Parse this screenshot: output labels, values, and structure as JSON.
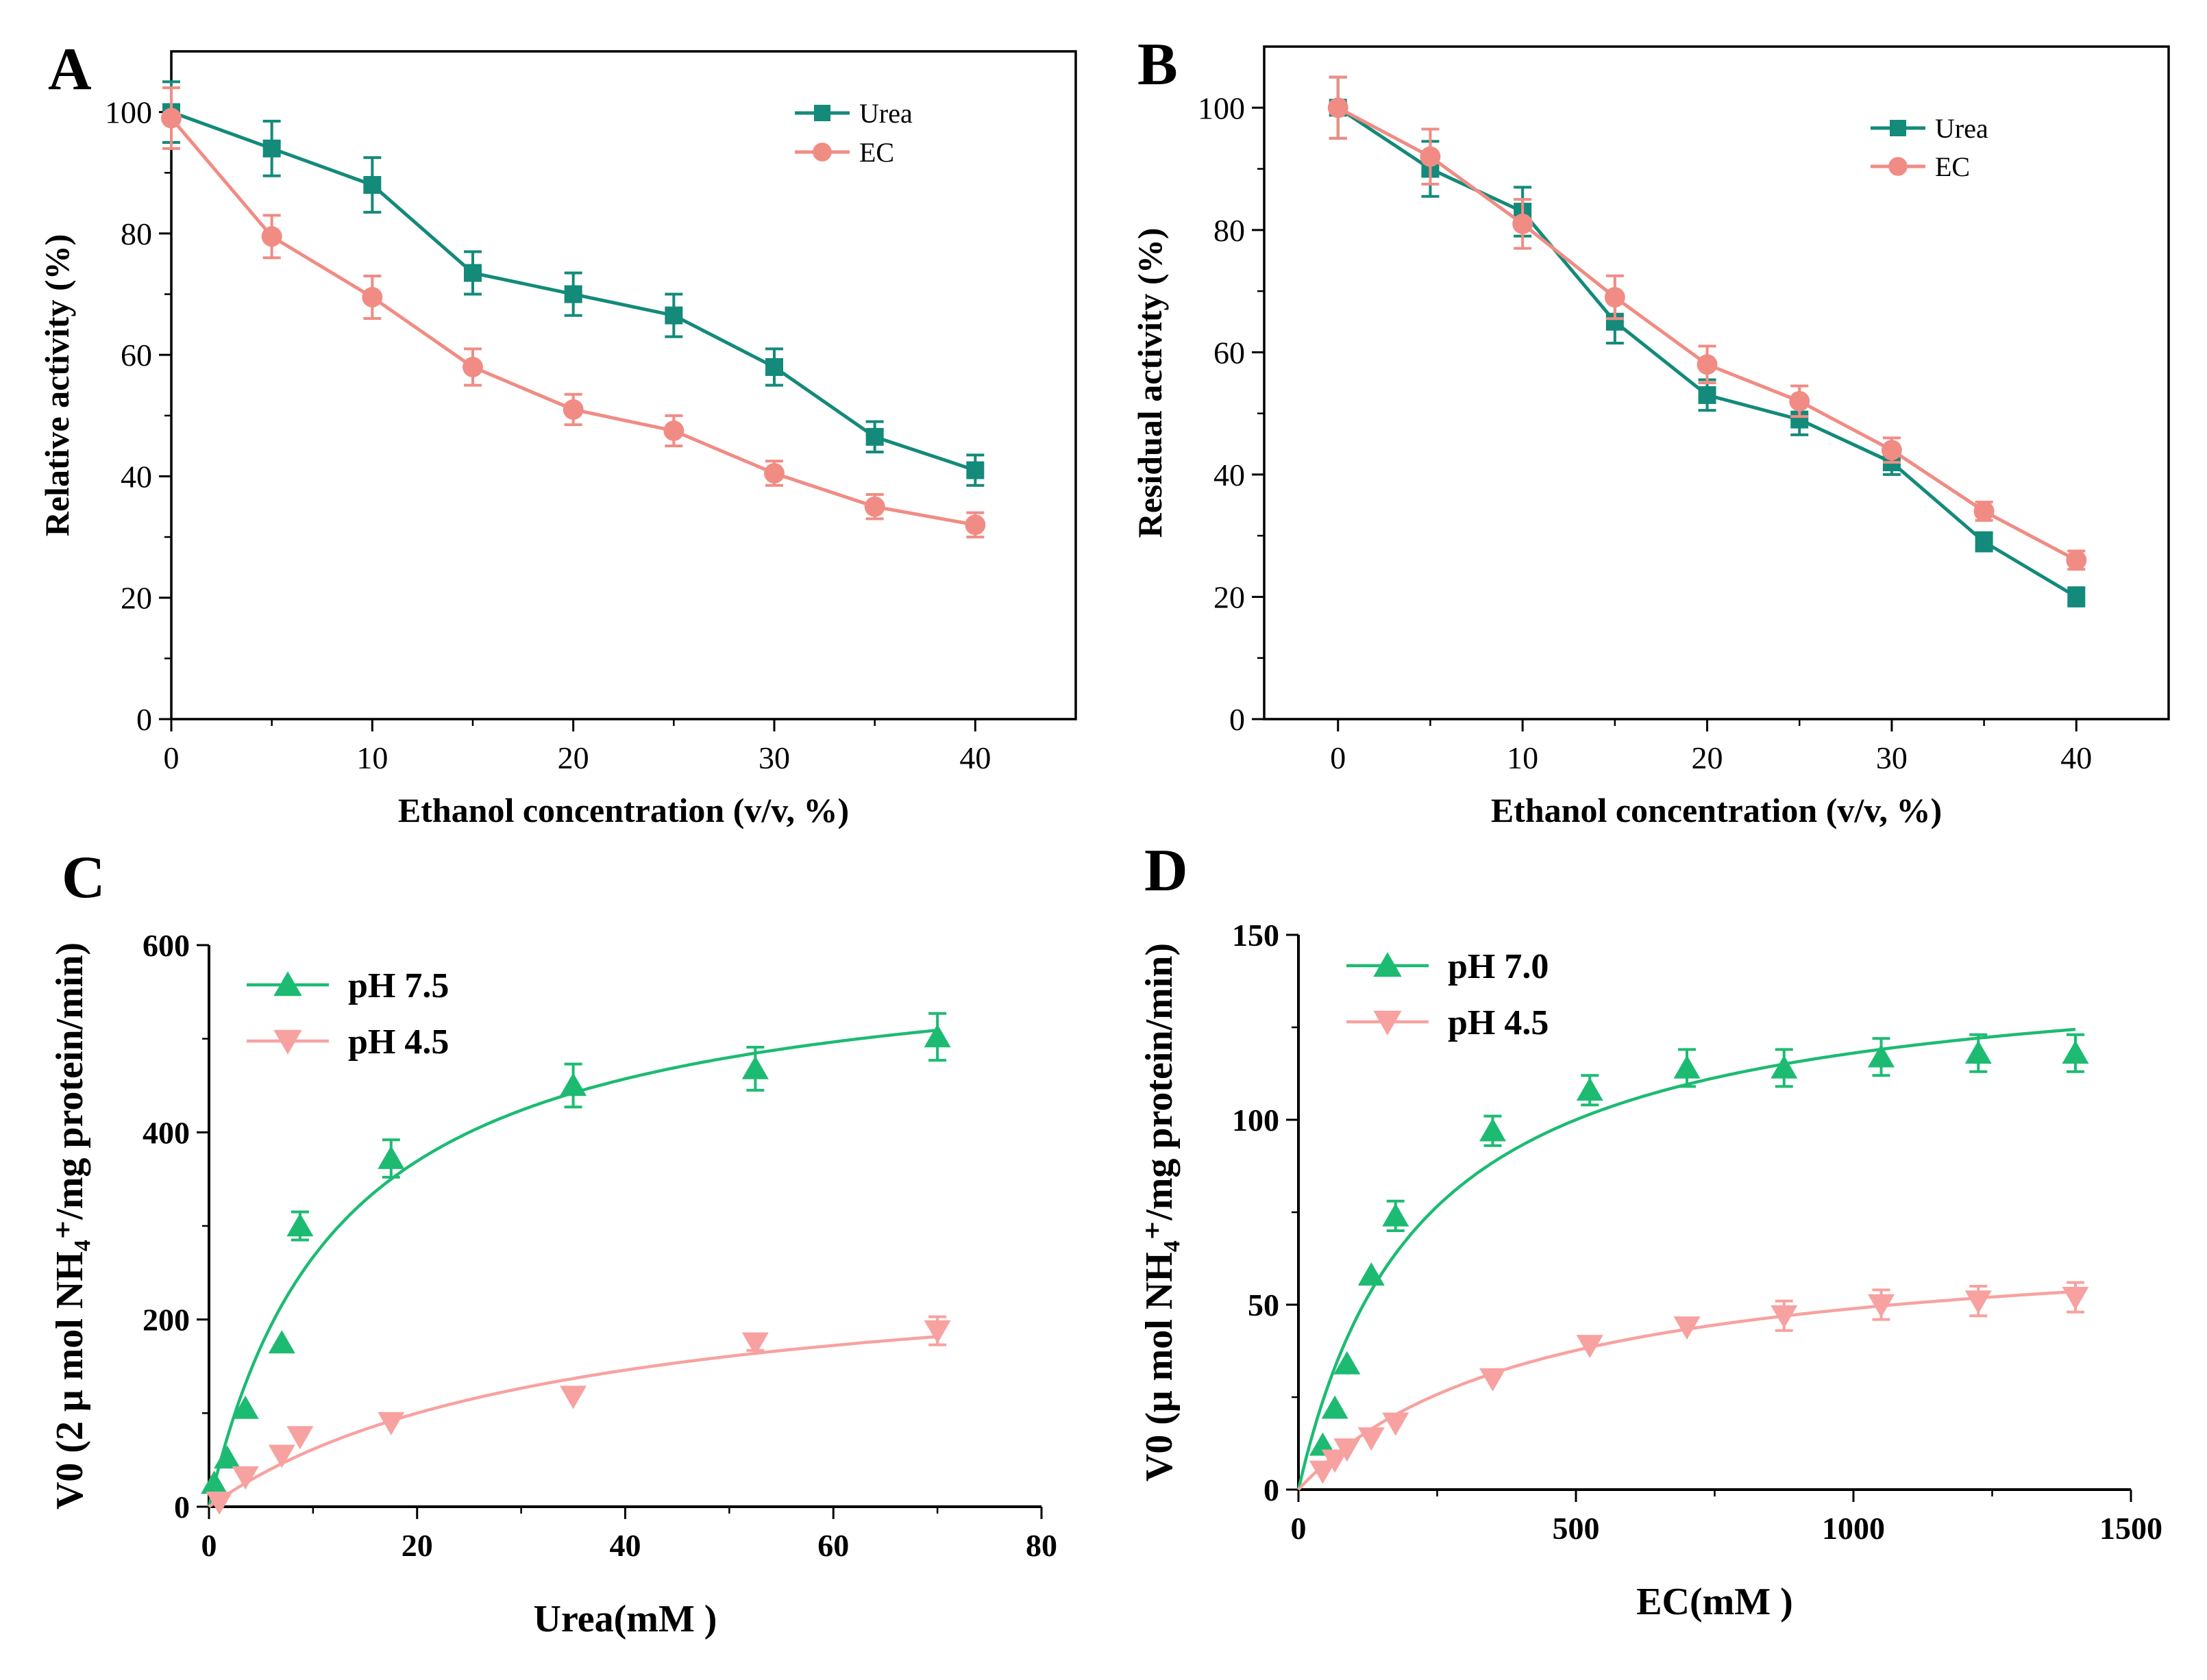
{
  "colors": {
    "teal": "#138a7a",
    "salmon": "#f08c84",
    "green": "#1dbb72",
    "pink": "#f7a2a0",
    "axis": "#000000"
  },
  "chart_data": [
    {
      "panel": "A",
      "type": "line",
      "xlabel": "Ethanol concentration (v/v, %)",
      "ylabel": "Relative activity (%)",
      "xlim": [
        0,
        45
      ],
      "ylim": [
        0,
        110
      ],
      "xticks": [
        0,
        10,
        20,
        30,
        40
      ],
      "yticks": [
        0,
        20,
        40,
        60,
        80,
        100
      ],
      "legend_position": "top-right",
      "series": [
        {
          "name": "Urea",
          "color": "#138a7a",
          "marker": "square",
          "x": [
            0,
            5,
            10,
            15,
            20,
            25,
            30,
            35,
            40
          ],
          "y": [
            100,
            94,
            88,
            73.5,
            70,
            66.5,
            58,
            46.5,
            41
          ],
          "err": [
            5,
            4.5,
            4.5,
            3.5,
            3.5,
            3.5,
            3,
            2.5,
            2.5
          ]
        },
        {
          "name": "EC",
          "color": "#f08c84",
          "marker": "circle",
          "x": [
            0,
            5,
            10,
            15,
            20,
            25,
            30,
            35,
            40
          ],
          "y": [
            99,
            79.5,
            69.5,
            58,
            51,
            47.5,
            40.5,
            35,
            32
          ],
          "err": [
            5,
            3.5,
            3.5,
            3,
            2.5,
            2.5,
            2,
            2,
            2
          ]
        }
      ]
    },
    {
      "panel": "B",
      "type": "line",
      "xlabel": "Ethanol concentration (v/v, %)",
      "ylabel": "Residual activity (%)",
      "xlim": [
        -4,
        45
      ],
      "ylim": [
        0,
        110
      ],
      "xticks": [
        0,
        10,
        20,
        30,
        40
      ],
      "yticks": [
        0,
        20,
        40,
        60,
        80,
        100
      ],
      "legend_position": "top-right",
      "series": [
        {
          "name": "Urea",
          "color": "#138a7a",
          "marker": "square",
          "x": [
            0,
            5,
            10,
            15,
            20,
            25,
            30,
            35,
            40
          ],
          "y": [
            100,
            90,
            83,
            65,
            53,
            49,
            42,
            29,
            20
          ],
          "err": [
            5,
            4.5,
            4,
            3.5,
            2.5,
            2.5,
            2,
            1.5,
            1.5
          ]
        },
        {
          "name": "EC",
          "color": "#f08c84",
          "marker": "circle",
          "x": [
            0,
            5,
            10,
            15,
            20,
            25,
            30,
            35,
            40
          ],
          "y": [
            100,
            92,
            81,
            69,
            58,
            52,
            44,
            34,
            26
          ],
          "err": [
            5,
            4.5,
            4,
            3.5,
            3,
            2.5,
            2,
            1.5,
            1.5
          ]
        }
      ]
    },
    {
      "panel": "C",
      "type": "scatter",
      "xlabel": "Urea(mM )",
      "ylabel": "V0 (2 μ mol NH₄⁺/mg protein/min)",
      "xlim": [
        0,
        80
      ],
      "ylim": [
        0,
        600
      ],
      "xticks": [
        0,
        20,
        40,
        60,
        80
      ],
      "yticks": [
        0,
        200,
        400,
        600
      ],
      "legend_position": "top-left",
      "series": [
        {
          "name": "pH 7.5",
          "color": "#1dbb72",
          "marker": "triangle-up",
          "x": [
            0.5,
            1.75,
            3.5,
            7,
            8.75,
            17.5,
            35,
            52.5,
            70
          ],
          "y": [
            25,
            52,
            105,
            175,
            300,
            372,
            450,
            468,
            502
          ],
          "err": [
            0,
            0,
            0,
            0,
            15,
            20,
            23,
            23,
            25
          ],
          "fit": {
            "vmax": 600,
            "km": 12.5
          }
        },
        {
          "name": "pH 4.5",
          "color": "#f7a2a0",
          "marker": "triangle-down",
          "x": [
            1,
            3.5,
            7,
            8.75,
            17.5,
            35,
            52.5,
            70
          ],
          "y": [
            5,
            32,
            55,
            75,
            90,
            118,
            175,
            188
          ],
          "err": [
            0,
            0,
            0,
            0,
            0,
            0,
            8,
            15
          ],
          "fit": {
            "vmax": 270,
            "km": 34
          }
        }
      ]
    },
    {
      "panel": "D",
      "type": "scatter",
      "xlabel": "EC(mM )",
      "ylabel": "V0 (μ mol NH₄⁺/mg protein/min)",
      "xlim": [
        0,
        1500
      ],
      "ylim": [
        0,
        150
      ],
      "xticks": [
        0,
        500,
        1000,
        1500
      ],
      "yticks": [
        0,
        50,
        100,
        150
      ],
      "legend_position": "top-left",
      "series": [
        {
          "name": "pH 7.0",
          "color": "#1dbb72",
          "marker": "triangle-up",
          "x": [
            43.75,
            65.6,
            87.5,
            131.25,
            175,
            350,
            525,
            700,
            875,
            1050,
            1225,
            1400
          ],
          "y": [
            12,
            22,
            34,
            58,
            74,
            97,
            108,
            114,
            114,
            117,
            118,
            118
          ],
          "err": [
            0,
            0,
            0,
            0,
            4,
            4,
            4,
            5,
            5,
            5,
            5,
            5
          ],
          "fit": {
            "vmax": 144,
            "km": 220
          }
        },
        {
          "name": "pH 4.5",
          "color": "#f7a2a0",
          "marker": "triangle-down",
          "x": [
            43.75,
            65.6,
            87.5,
            131.25,
            175,
            350,
            525,
            700,
            875,
            1050,
            1225,
            1400
          ],
          "y": [
            5,
            8,
            11,
            14,
            18,
            30,
            39,
            44,
            47,
            50,
            51,
            52
          ],
          "err": [
            0,
            0,
            0,
            0,
            0,
            0,
            0,
            0,
            4,
            4,
            4,
            4
          ],
          "fit": {
            "vmax": 70,
            "km": 430
          }
        }
      ]
    }
  ]
}
